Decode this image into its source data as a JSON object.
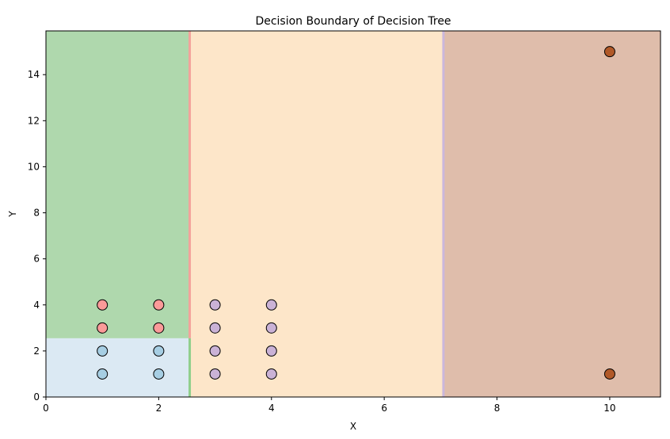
{
  "chart_data": {
    "type": "scatter",
    "title": "Decision Boundary of Decision Tree",
    "xlabel": "X",
    "ylabel": "Y",
    "xlim": [
      0,
      10.9
    ],
    "ylim": [
      0,
      15.9
    ],
    "x_ticks": [
      0,
      2,
      4,
      6,
      8,
      10
    ],
    "y_ticks": [
      0,
      2,
      4,
      6,
      8,
      10,
      12,
      14
    ],
    "grid": false,
    "regions": [
      {
        "x": [
          0,
          2.55
        ],
        "y": [
          2.55,
          15.9
        ],
        "color": "#afd8ad"
      },
      {
        "x": [
          0,
          2.55
        ],
        "y": [
          0,
          2.55
        ],
        "color": "#dbe9f3"
      },
      {
        "x": [
          2.55,
          7.05
        ],
        "y": [
          0,
          15.9
        ],
        "color": "#fde6c9"
      },
      {
        "x": [
          7.05,
          10.9
        ],
        "y": [
          0,
          15.9
        ],
        "color": "#dfbdab"
      }
    ],
    "boundaries": [
      {
        "x": 2.55,
        "y": [
          2.55,
          15.9
        ],
        "color": "#f4a39b"
      },
      {
        "x": 2.55,
        "y": [
          0,
          2.55
        ],
        "color": "#8fcf8c"
      },
      {
        "x": 7.05,
        "y": [
          0,
          15.9
        ],
        "color": "#cbb7dc"
      }
    ],
    "series": [
      {
        "color": "#a6cee3",
        "points": [
          [
            1,
            1
          ],
          [
            2,
            1
          ],
          [
            1,
            2
          ],
          [
            2,
            2
          ]
        ]
      },
      {
        "color": "#fb9a99",
        "points": [
          [
            1,
            3
          ],
          [
            2,
            3
          ],
          [
            1,
            4
          ],
          [
            2,
            4
          ]
        ]
      },
      {
        "color": "#cab2d6",
        "points": [
          [
            3,
            1
          ],
          [
            4,
            1
          ],
          [
            3,
            2
          ],
          [
            4,
            2
          ],
          [
            3,
            3
          ],
          [
            4,
            3
          ],
          [
            3,
            4
          ],
          [
            4,
            4
          ]
        ]
      },
      {
        "color": "#b15928",
        "points": [
          [
            10,
            1
          ],
          [
            10,
            15
          ]
        ]
      }
    ]
  }
}
